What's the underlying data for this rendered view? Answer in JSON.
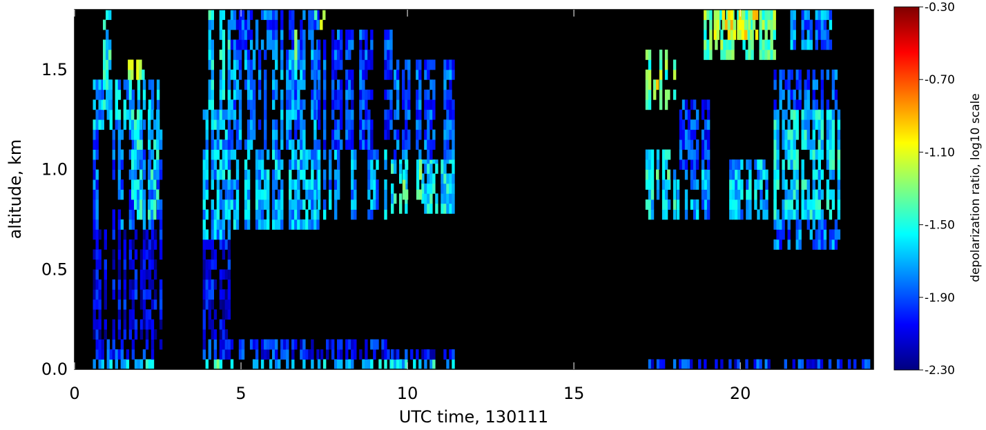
{
  "chart_data": {
    "type": "heatmap",
    "title": "",
    "xlabel": "UTC time, 130111",
    "ylabel": "altitude, km",
    "xlim": [
      0,
      24
    ],
    "ylim": [
      0,
      1.8
    ],
    "x_ticks": [
      "0",
      "5",
      "10",
      "15",
      "20"
    ],
    "y_ticks": [
      "0.0",
      "0.5",
      "1.0",
      "1.5"
    ],
    "colorbar": {
      "label": "depolarization ratio, log10 scale",
      "range": [
        -2.3,
        -0.3
      ],
      "ticks": [
        "-0.30",
        "-0.70",
        "-1.10",
        "-1.50",
        "-1.90",
        "-2.30"
      ],
      "colormap": "rainbow"
    },
    "background": "#000000",
    "data_columns": [
      {
        "x": [
          0.55,
          2.55
        ],
        "ranges": [
          [
            0.0,
            0.05,
            -1.6
          ],
          [
            0.05,
            0.15,
            -2.0
          ],
          [
            0.15,
            0.7,
            -2.1
          ],
          [
            0.7,
            1.2,
            -1.9
          ],
          [
            1.2,
            1.45,
            -1.7
          ]
        ]
      },
      {
        "x": [
          0.85,
          1.2
        ],
        "ranges": [
          [
            1.3,
            1.8,
            -1.55
          ]
        ]
      },
      {
        "x": [
          1.6,
          2.2
        ],
        "ranges": [
          [
            1.45,
            1.55,
            -1.3
          ]
        ]
      },
      {
        "x": [
          1.7,
          2.5
        ],
        "ranges": [
          [
            0.75,
            1.3,
            -1.6
          ]
        ]
      },
      {
        "x": [
          3.85,
          4.6
        ],
        "ranges": [
          [
            0.0,
            0.05,
            -1.5
          ],
          [
            0.05,
            0.15,
            -2.0
          ],
          [
            0.15,
            0.65,
            -2.1
          ],
          [
            0.65,
            1.3,
            -1.7
          ],
          [
            1.3,
            1.8,
            -1.6
          ]
        ]
      },
      {
        "x": [
          4.6,
          7.3
        ],
        "ranges": [
          [
            0.0,
            0.05,
            -1.6
          ],
          [
            0.05,
            0.15,
            -2.0
          ],
          [
            0.7,
            1.1,
            -1.7
          ],
          [
            1.1,
            1.6,
            -1.8
          ],
          [
            1.6,
            1.8,
            -1.9
          ]
        ]
      },
      {
        "x": [
          6.6,
          7.0
        ],
        "ranges": [
          [
            1.45,
            1.7,
            -1.4
          ]
        ]
      },
      {
        "x": [
          7.2,
          7.5
        ],
        "ranges": [
          [
            1.7,
            1.8,
            -1.2
          ]
        ]
      },
      {
        "x": [
          7.3,
          9.5
        ],
        "ranges": [
          [
            0.0,
            0.05,
            -1.6
          ],
          [
            0.05,
            0.15,
            -2.05
          ],
          [
            0.75,
            1.1,
            -1.75
          ],
          [
            1.1,
            1.7,
            -1.95
          ]
        ]
      },
      {
        "x": [
          9.5,
          11.4
        ],
        "ranges": [
          [
            0.0,
            0.05,
            -1.6
          ],
          [
            0.05,
            0.1,
            -2.05
          ],
          [
            0.78,
            1.05,
            -1.6
          ],
          [
            1.05,
            1.55,
            -1.9
          ]
        ]
      },
      {
        "x": [
          9.85,
          10.5
        ],
        "ranges": [
          [
            0.85,
            1.05,
            -1.45
          ]
        ]
      },
      {
        "x": [
          17.15,
          24.0
        ],
        "ranges": [
          [
            0.0,
            0.05,
            -2.0
          ]
        ]
      },
      {
        "x": [
          17.15,
          18.0
        ],
        "ranges": [
          [
            0.75,
            1.1,
            -1.6
          ],
          [
            1.3,
            1.6,
            -1.35
          ]
        ]
      },
      {
        "x": [
          17.3,
          17.8
        ],
        "ranges": [
          [
            0.9,
            1.0,
            -1.45
          ],
          [
            1.35,
            1.45,
            -1.15
          ]
        ]
      },
      {
        "x": [
          18.0,
          19.0
        ],
        "ranges": [
          [
            0.75,
            1.0,
            -1.75
          ],
          [
            1.0,
            1.35,
            -1.95
          ]
        ]
      },
      {
        "x": [
          18.9,
          21.0
        ],
        "ranges": [
          [
            1.55,
            1.8,
            -1.35
          ]
        ]
      },
      {
        "x": [
          19.2,
          20.6
        ],
        "ranges": [
          [
            1.65,
            1.8,
            -1.1
          ]
        ]
      },
      {
        "x": [
          19.5,
          21.0
        ],
        "ranges": [
          [
            0.75,
            1.05,
            -1.7
          ]
        ]
      },
      {
        "x": [
          21.0,
          23.0
        ],
        "ranges": [
          [
            0.6,
            0.75,
            -1.85
          ],
          [
            0.75,
            1.3,
            -1.6
          ],
          [
            1.3,
            1.5,
            -1.9
          ]
        ]
      },
      {
        "x": [
          21.5,
          22.7
        ],
        "ranges": [
          [
            1.6,
            1.8,
            -1.8
          ]
        ]
      }
    ]
  }
}
